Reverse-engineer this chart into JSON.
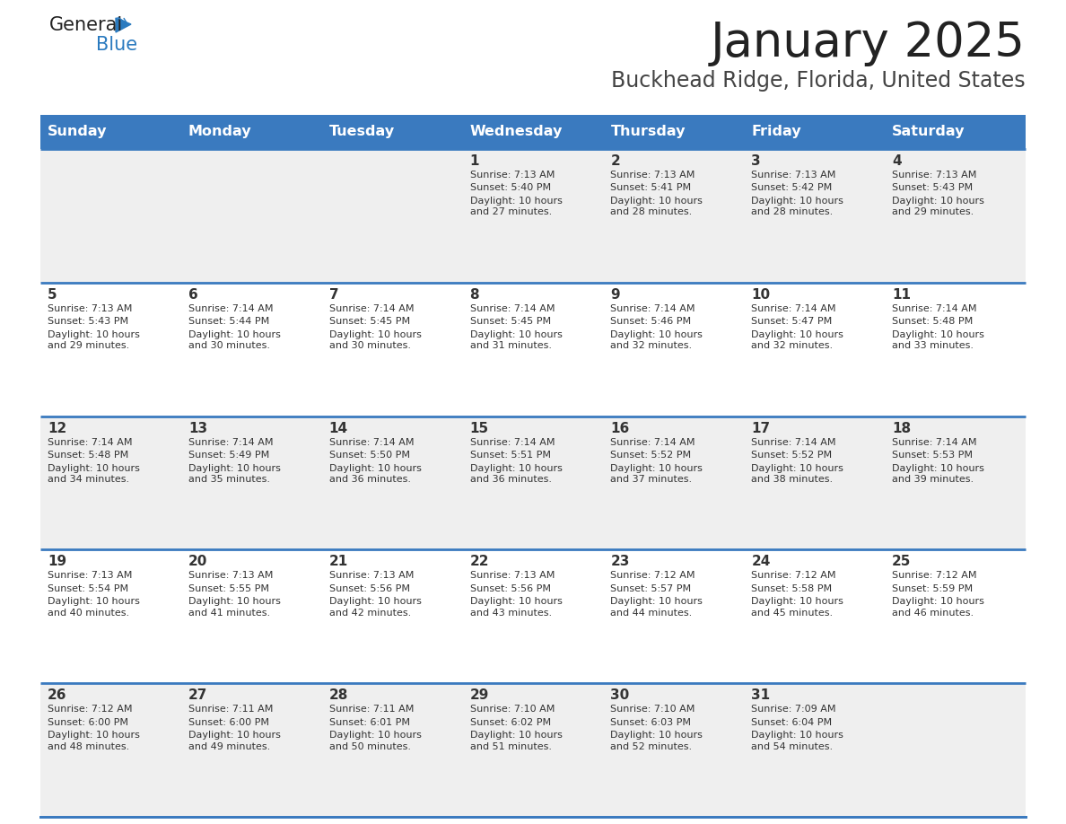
{
  "title": "January 2025",
  "subtitle": "Buckhead Ridge, Florida, United States",
  "days_of_week": [
    "Sunday",
    "Monday",
    "Tuesday",
    "Wednesday",
    "Thursday",
    "Friday",
    "Saturday"
  ],
  "header_bg": "#3a7abf",
  "header_text_color": "#ffffff",
  "row_bg_even": "#efefef",
  "row_bg_odd": "#ffffff",
  "cell_text_color": "#333333",
  "day_num_color": "#333333",
  "divider_color": "#3a7abf",
  "logo_general_color": "#222222",
  "logo_blue_color": "#2a7abf",
  "logo_triangle_color": "#2a7abf",
  "weeks": [
    [
      {
        "day": "",
        "sunrise": "",
        "sunset": "",
        "daylight": ""
      },
      {
        "day": "",
        "sunrise": "",
        "sunset": "",
        "daylight": ""
      },
      {
        "day": "",
        "sunrise": "",
        "sunset": "",
        "daylight": ""
      },
      {
        "day": "1",
        "sunrise": "7:13 AM",
        "sunset": "5:40 PM",
        "daylight": "10 hours\nand 27 minutes."
      },
      {
        "day": "2",
        "sunrise": "7:13 AM",
        "sunset": "5:41 PM",
        "daylight": "10 hours\nand 28 minutes."
      },
      {
        "day": "3",
        "sunrise": "7:13 AM",
        "sunset": "5:42 PM",
        "daylight": "10 hours\nand 28 minutes."
      },
      {
        "day": "4",
        "sunrise": "7:13 AM",
        "sunset": "5:43 PM",
        "daylight": "10 hours\nand 29 minutes."
      }
    ],
    [
      {
        "day": "5",
        "sunrise": "7:13 AM",
        "sunset": "5:43 PM",
        "daylight": "10 hours\nand 29 minutes."
      },
      {
        "day": "6",
        "sunrise": "7:14 AM",
        "sunset": "5:44 PM",
        "daylight": "10 hours\nand 30 minutes."
      },
      {
        "day": "7",
        "sunrise": "7:14 AM",
        "sunset": "5:45 PM",
        "daylight": "10 hours\nand 30 minutes."
      },
      {
        "day": "8",
        "sunrise": "7:14 AM",
        "sunset": "5:45 PM",
        "daylight": "10 hours\nand 31 minutes."
      },
      {
        "day": "9",
        "sunrise": "7:14 AM",
        "sunset": "5:46 PM",
        "daylight": "10 hours\nand 32 minutes."
      },
      {
        "day": "10",
        "sunrise": "7:14 AM",
        "sunset": "5:47 PM",
        "daylight": "10 hours\nand 32 minutes."
      },
      {
        "day": "11",
        "sunrise": "7:14 AM",
        "sunset": "5:48 PM",
        "daylight": "10 hours\nand 33 minutes."
      }
    ],
    [
      {
        "day": "12",
        "sunrise": "7:14 AM",
        "sunset": "5:48 PM",
        "daylight": "10 hours\nand 34 minutes."
      },
      {
        "day": "13",
        "sunrise": "7:14 AM",
        "sunset": "5:49 PM",
        "daylight": "10 hours\nand 35 minutes."
      },
      {
        "day": "14",
        "sunrise": "7:14 AM",
        "sunset": "5:50 PM",
        "daylight": "10 hours\nand 36 minutes."
      },
      {
        "day": "15",
        "sunrise": "7:14 AM",
        "sunset": "5:51 PM",
        "daylight": "10 hours\nand 36 minutes."
      },
      {
        "day": "16",
        "sunrise": "7:14 AM",
        "sunset": "5:52 PM",
        "daylight": "10 hours\nand 37 minutes."
      },
      {
        "day": "17",
        "sunrise": "7:14 AM",
        "sunset": "5:52 PM",
        "daylight": "10 hours\nand 38 minutes."
      },
      {
        "day": "18",
        "sunrise": "7:14 AM",
        "sunset": "5:53 PM",
        "daylight": "10 hours\nand 39 minutes."
      }
    ],
    [
      {
        "day": "19",
        "sunrise": "7:13 AM",
        "sunset": "5:54 PM",
        "daylight": "10 hours\nand 40 minutes."
      },
      {
        "day": "20",
        "sunrise": "7:13 AM",
        "sunset": "5:55 PM",
        "daylight": "10 hours\nand 41 minutes."
      },
      {
        "day": "21",
        "sunrise": "7:13 AM",
        "sunset": "5:56 PM",
        "daylight": "10 hours\nand 42 minutes."
      },
      {
        "day": "22",
        "sunrise": "7:13 AM",
        "sunset": "5:56 PM",
        "daylight": "10 hours\nand 43 minutes."
      },
      {
        "day": "23",
        "sunrise": "7:12 AM",
        "sunset": "5:57 PM",
        "daylight": "10 hours\nand 44 minutes."
      },
      {
        "day": "24",
        "sunrise": "7:12 AM",
        "sunset": "5:58 PM",
        "daylight": "10 hours\nand 45 minutes."
      },
      {
        "day": "25",
        "sunrise": "7:12 AM",
        "sunset": "5:59 PM",
        "daylight": "10 hours\nand 46 minutes."
      }
    ],
    [
      {
        "day": "26",
        "sunrise": "7:12 AM",
        "sunset": "6:00 PM",
        "daylight": "10 hours\nand 48 minutes."
      },
      {
        "day": "27",
        "sunrise": "7:11 AM",
        "sunset": "6:00 PM",
        "daylight": "10 hours\nand 49 minutes."
      },
      {
        "day": "28",
        "sunrise": "7:11 AM",
        "sunset": "6:01 PM",
        "daylight": "10 hours\nand 50 minutes."
      },
      {
        "day": "29",
        "sunrise": "7:10 AM",
        "sunset": "6:02 PM",
        "daylight": "10 hours\nand 51 minutes."
      },
      {
        "day": "30",
        "sunrise": "7:10 AM",
        "sunset": "6:03 PM",
        "daylight": "10 hours\nand 52 minutes."
      },
      {
        "day": "31",
        "sunrise": "7:09 AM",
        "sunset": "6:04 PM",
        "daylight": "10 hours\nand 54 minutes."
      },
      {
        "day": "",
        "sunrise": "",
        "sunset": "",
        "daylight": ""
      }
    ]
  ]
}
